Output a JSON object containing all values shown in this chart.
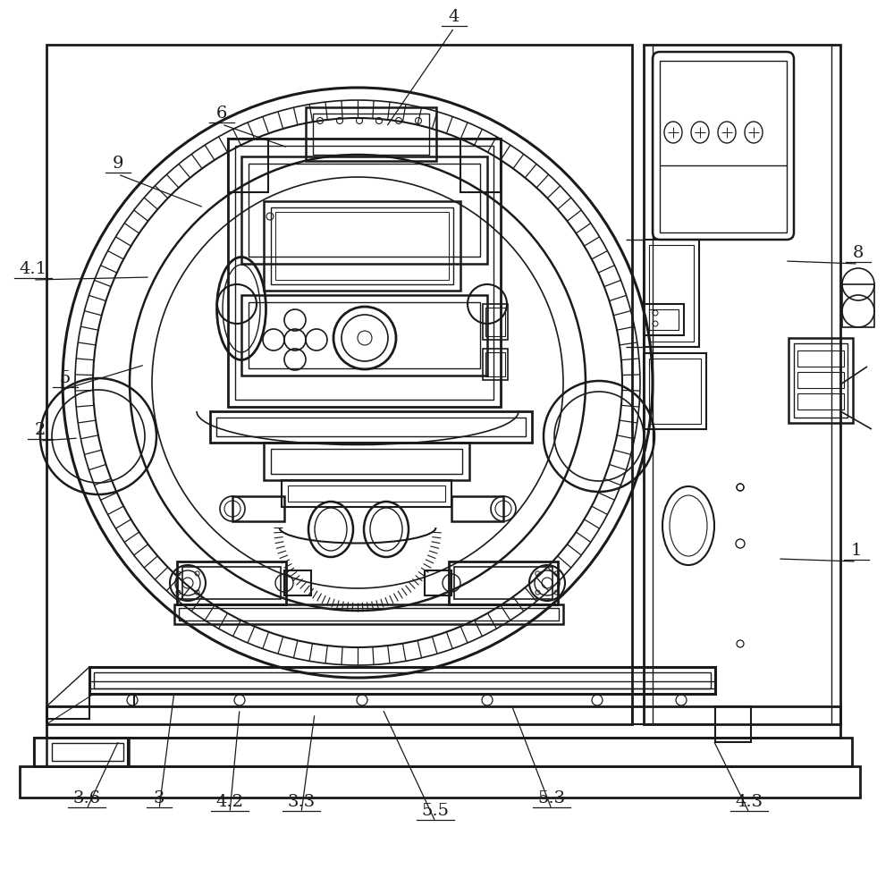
{
  "bg_color": "#ffffff",
  "line_color": "#1a1a1a",
  "fig_width": 10.0,
  "fig_height": 9.82,
  "labels_data": [
    [
      "1",
      958,
      625,
      870,
      625
    ],
    [
      "2",
      45,
      490,
      88,
      490
    ],
    [
      "3",
      178,
      902,
      195,
      773
    ],
    [
      "4",
      508,
      28,
      432,
      142
    ],
    [
      "5",
      73,
      432,
      162,
      408
    ],
    [
      "6",
      248,
      136,
      322,
      165
    ],
    [
      "8",
      960,
      292,
      878,
      292
    ],
    [
      "9",
      132,
      192,
      228,
      232
    ],
    [
      "4.1",
      37,
      310,
      168,
      310
    ],
    [
      "4.2",
      257,
      906,
      268,
      793
    ],
    [
      "4.3",
      838,
      906,
      798,
      828
    ],
    [
      "3.3",
      337,
      906,
      352,
      798
    ],
    [
      "3.6",
      97,
      902,
      133,
      828
    ],
    [
      "5.3",
      617,
      902,
      572,
      788
    ],
    [
      "5.5",
      487,
      916,
      428,
      793
    ]
  ]
}
